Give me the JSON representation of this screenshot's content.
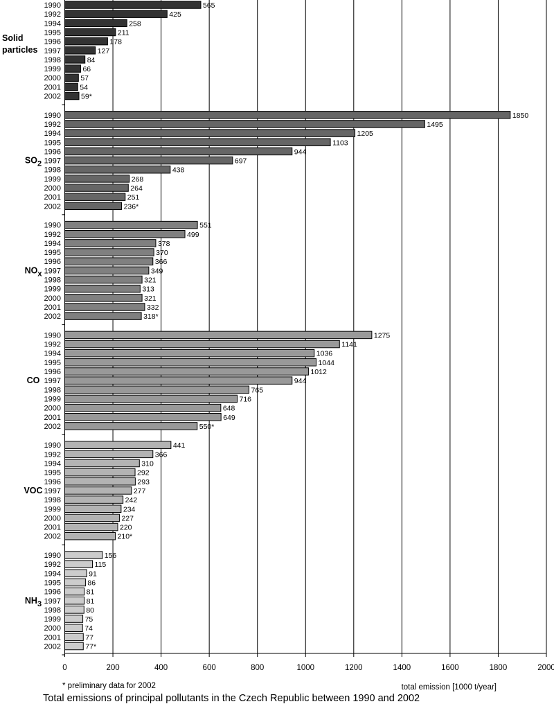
{
  "chart_data": {
    "type": "bar",
    "orientation": "horizontal",
    "title": "Total emissions of principal pollutants in the Czech Republic between 1990 and 2002",
    "xlabel": "total emission [1000 t/year]",
    "note": "* preliminary data for 2002",
    "xlim": [
      0,
      2000
    ],
    "xticks": [
      0,
      200,
      400,
      600,
      800,
      1000,
      1200,
      1400,
      1600,
      1800,
      2000
    ],
    "grid": true,
    "categories": [
      "1990",
      "1992",
      "1994",
      "1995",
      "1996",
      "1997",
      "1998",
      "1999",
      "2000",
      "2001",
      "2002"
    ],
    "series": [
      {
        "name": "Solid particles",
        "label_main": "Solid",
        "label_line2": "particles",
        "label_sub": "",
        "color": "#333333",
        "values": [
          565,
          425,
          258,
          211,
          178,
          127,
          84,
          66,
          57,
          54,
          59
        ],
        "labels": [
          "565",
          "425",
          "258",
          "211",
          "178",
          "127",
          "84",
          "66",
          "57",
          "54",
          "59*"
        ]
      },
      {
        "name": "SO2",
        "label_main": "SO",
        "label_line2": "",
        "label_sub": "2",
        "color": "#666666",
        "values": [
          1850,
          1495,
          1205,
          1103,
          944,
          697,
          438,
          268,
          264,
          251,
          236
        ],
        "labels": [
          "1850",
          "1495",
          "1205",
          "1103",
          "944",
          "697",
          "438",
          "268",
          "264",
          "251",
          "236*"
        ]
      },
      {
        "name": "NOx",
        "label_main": "NO",
        "label_line2": "",
        "label_sub": "x",
        "color": "#808080",
        "values": [
          551,
          499,
          378,
          370,
          366,
          349,
          321,
          313,
          321,
          332,
          318
        ],
        "labels": [
          "551",
          "499",
          "378",
          "370",
          "366",
          "349",
          "321",
          "313",
          "321",
          "332",
          "318*"
        ]
      },
      {
        "name": "CO",
        "label_main": "CO",
        "label_line2": "",
        "label_sub": "",
        "color": "#999999",
        "values": [
          1275,
          1141,
          1036,
          1044,
          1012,
          944,
          765,
          716,
          648,
          649,
          550
        ],
        "labels": [
          "1275",
          "1141",
          "1036",
          "1044",
          "1012",
          "944",
          "765",
          "716",
          "648",
          "649",
          "550*"
        ]
      },
      {
        "name": "VOC",
        "label_main": "VOC",
        "label_line2": "",
        "label_sub": "",
        "color": "#b3b3b3",
        "values": [
          441,
          366,
          310,
          292,
          293,
          277,
          242,
          234,
          227,
          220,
          210
        ],
        "labels": [
          "441",
          "366",
          "310",
          "292",
          "293",
          "277",
          "242",
          "234",
          "227",
          "220",
          "210*"
        ]
      },
      {
        "name": "NH3",
        "label_main": "NH",
        "label_line2": "",
        "label_sub": "3",
        "color": "#cccccc",
        "values": [
          156,
          115,
          91,
          86,
          81,
          81,
          80,
          75,
          74,
          77,
          77
        ],
        "labels": [
          "156",
          "115",
          "91",
          "86",
          "81",
          "81",
          "80",
          "75",
          "74",
          "77",
          "77*"
        ]
      }
    ]
  }
}
